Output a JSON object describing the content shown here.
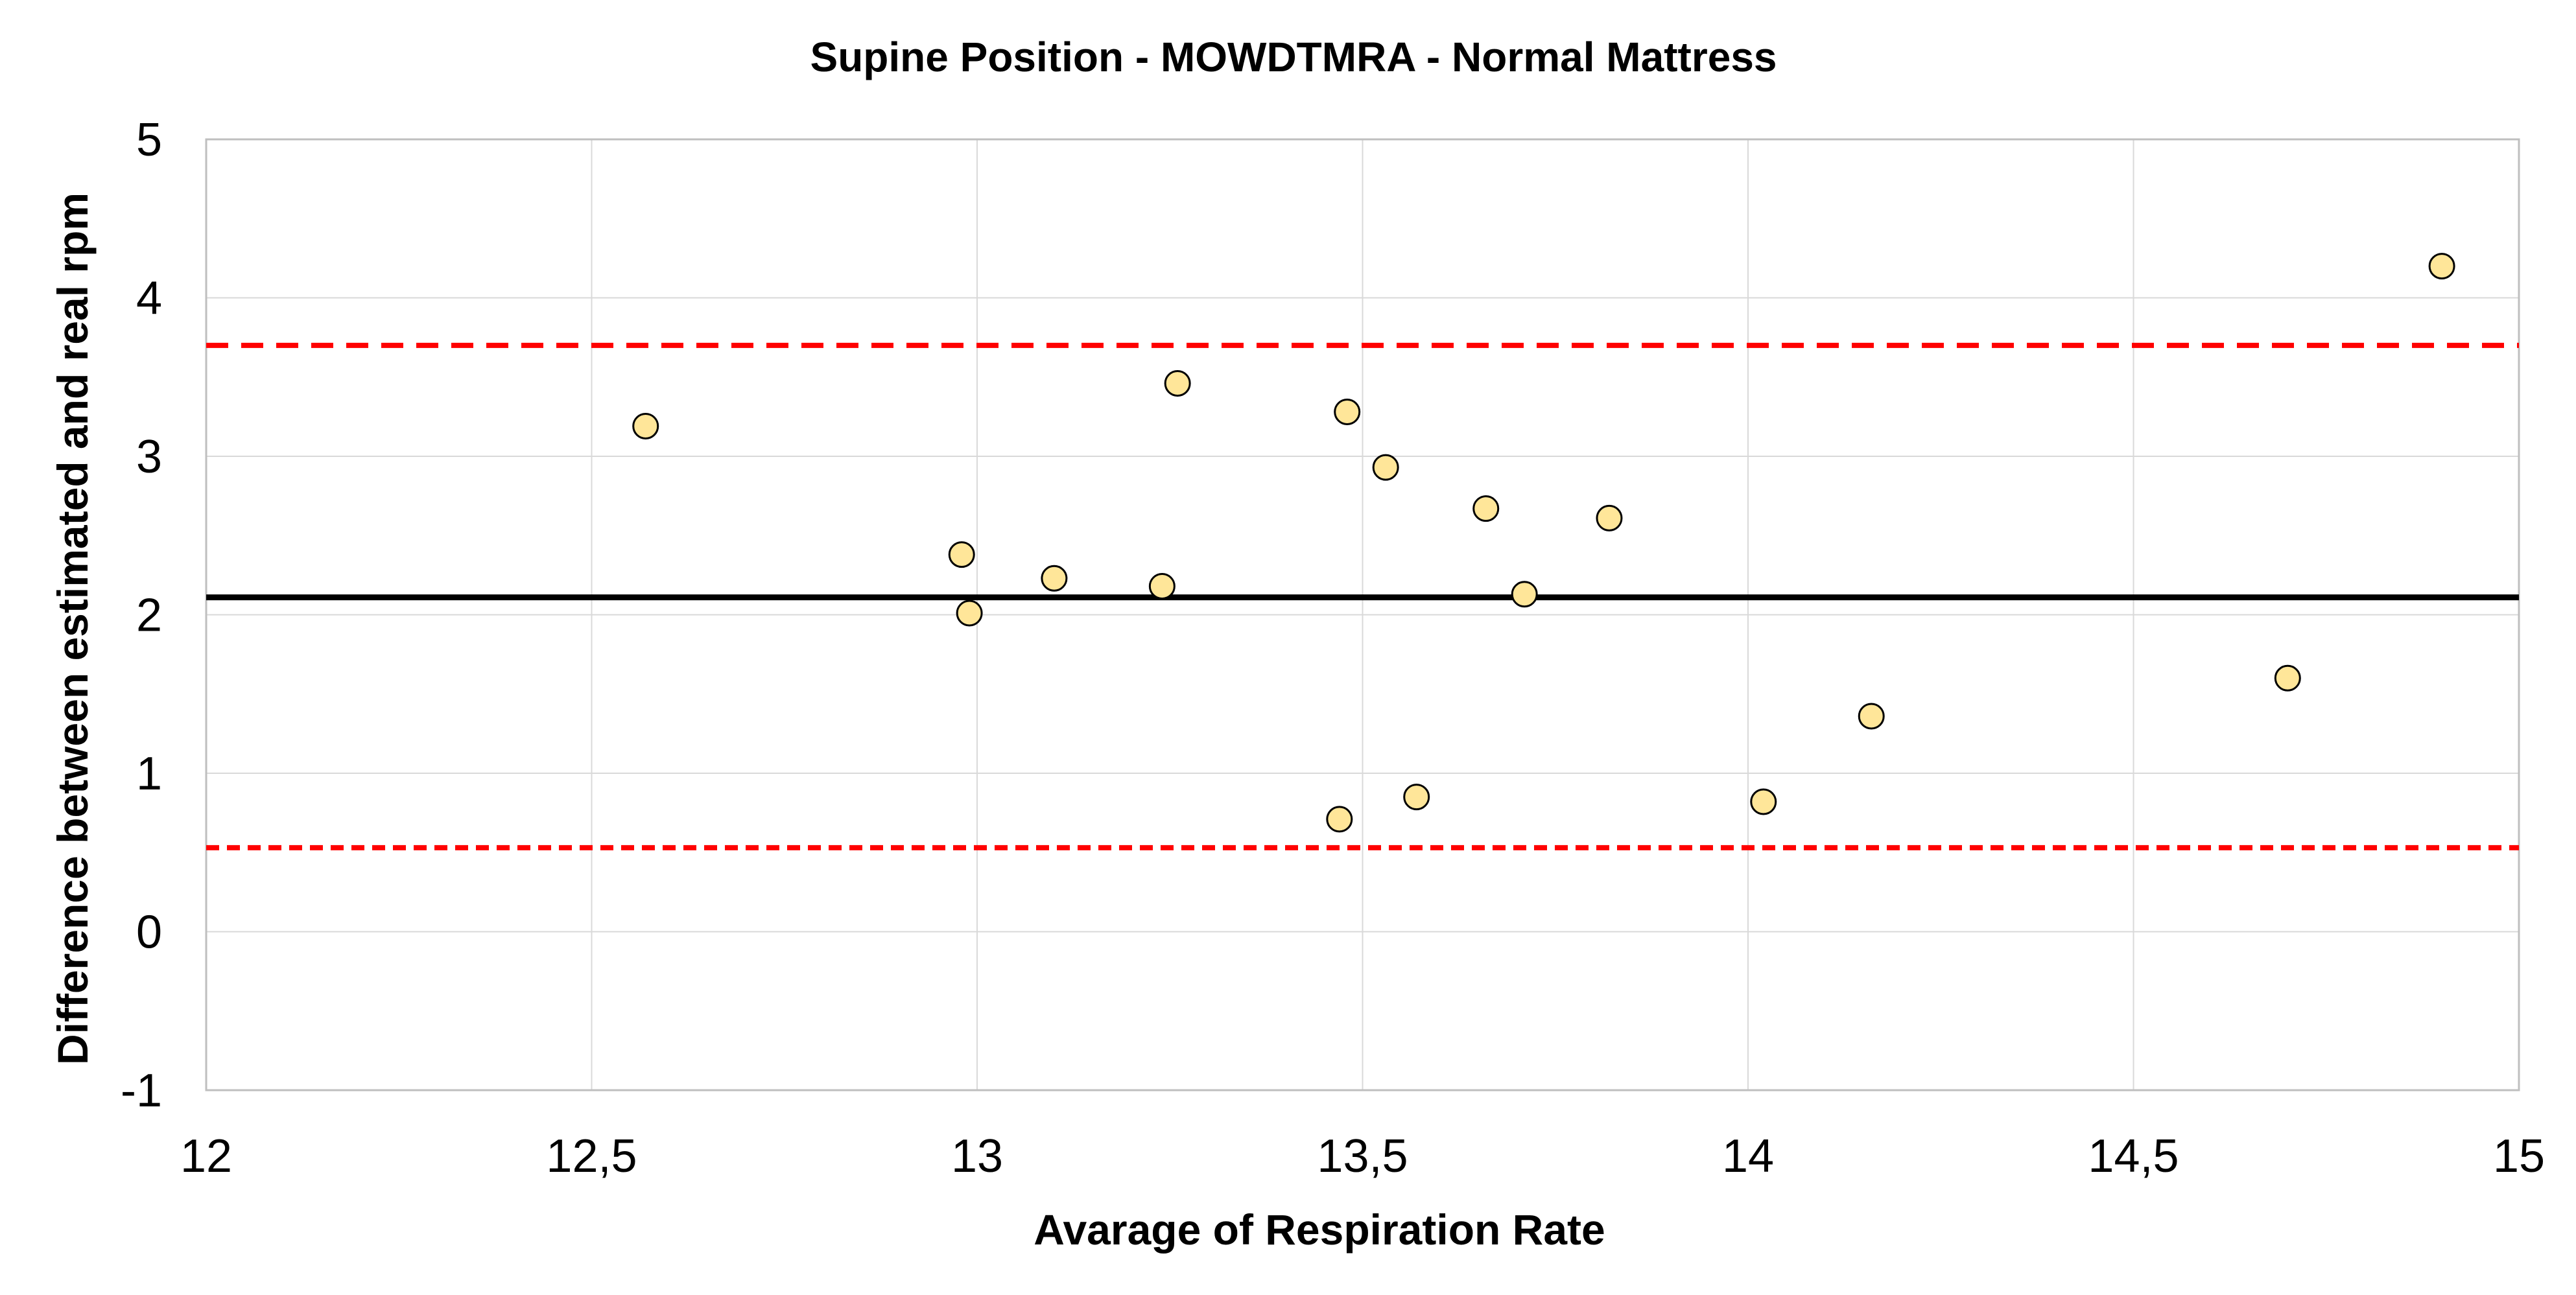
{
  "chart_data": {
    "type": "scatter",
    "title": "Supine Position - MOWDTMRA - Normal Mattress",
    "xlabel": "Avarage of Respiration Rate",
    "ylabel": "Difference between estimated and real rpm",
    "xlim": [
      12,
      15
    ],
    "ylim": [
      -1,
      5
    ],
    "x_ticks": [
      "12",
      "12,5",
      "13",
      "13,5",
      "14",
      "14,5",
      "15"
    ],
    "x_tick_values": [
      12,
      12.5,
      13,
      13.5,
      14,
      14.5,
      15
    ],
    "y_ticks": [
      "-1",
      "0",
      "1",
      "2",
      "3",
      "4",
      "5"
    ],
    "y_tick_values": [
      -1,
      0,
      1,
      2,
      3,
      4,
      5
    ],
    "grid": true,
    "mean_line": 2.11,
    "upper_limit": 3.7,
    "lower_limit": 0.53,
    "colors": {
      "points": "#ffe699",
      "mean": "#000000",
      "limits": "#ff0000"
    },
    "points": [
      {
        "x": 12.57,
        "y": 3.19
      },
      {
        "x": 12.98,
        "y": 2.38
      },
      {
        "x": 12.99,
        "y": 2.01
      },
      {
        "x": 13.1,
        "y": 2.23
      },
      {
        "x": 13.24,
        "y": 2.18
      },
      {
        "x": 13.26,
        "y": 3.46
      },
      {
        "x": 13.47,
        "y": 0.71
      },
      {
        "x": 13.48,
        "y": 3.28
      },
      {
        "x": 13.53,
        "y": 2.93
      },
      {
        "x": 13.57,
        "y": 0.85
      },
      {
        "x": 13.66,
        "y": 2.67
      },
      {
        "x": 13.71,
        "y": 2.13
      },
      {
        "x": 13.82,
        "y": 2.61
      },
      {
        "x": 14.02,
        "y": 0.82
      },
      {
        "x": 14.16,
        "y": 1.36
      },
      {
        "x": 14.7,
        "y": 1.6
      },
      {
        "x": 14.9,
        "y": 4.2
      }
    ]
  }
}
